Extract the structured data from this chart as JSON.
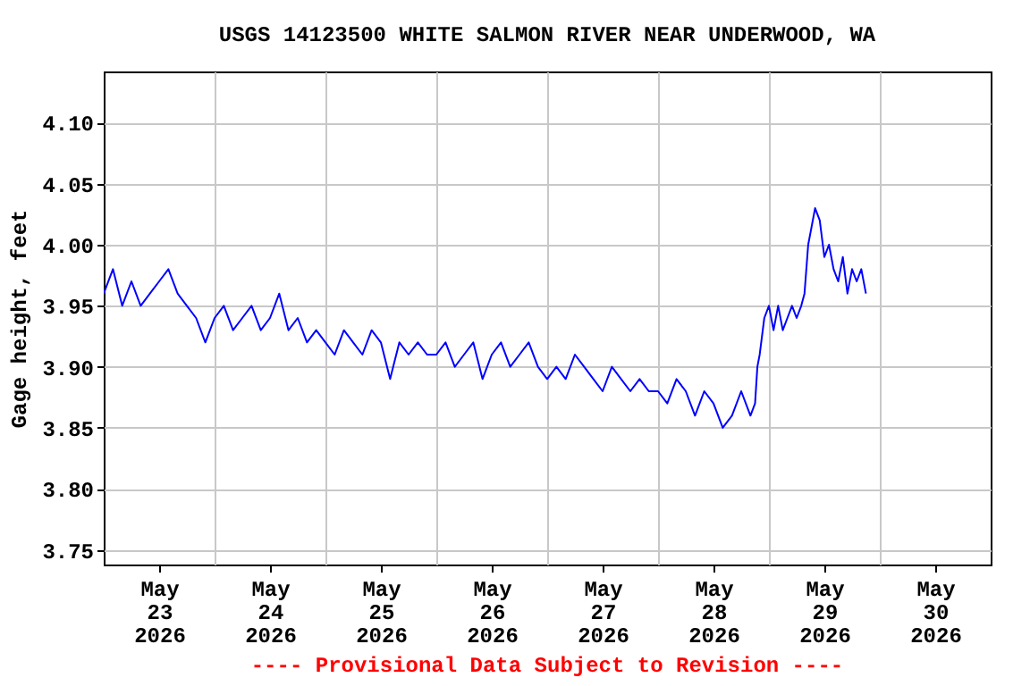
{
  "chart_data": {
    "type": "line",
    "title": "USGS 14123500 WHITE SALMON RIVER NEAR UNDERWOOD, WA",
    "ylabel": "Gage height, feet",
    "annotations": [
      "---- Provisional Data Subject to Revision ----"
    ],
    "x": [
      "2026-05-23T00:00",
      "2026-05-23T02:00",
      "2026-05-23T04:00",
      "2026-05-23T06:00",
      "2026-05-23T08:00",
      "2026-05-23T10:00",
      "2026-05-23T12:00",
      "2026-05-23T14:00",
      "2026-05-23T16:00",
      "2026-05-23T18:00",
      "2026-05-23T20:00",
      "2026-05-23T22:00",
      "2026-05-24T00:00",
      "2026-05-24T02:00",
      "2026-05-24T04:00",
      "2026-05-24T06:00",
      "2026-05-24T08:00",
      "2026-05-24T10:00",
      "2026-05-24T12:00",
      "2026-05-24T14:00",
      "2026-05-24T16:00",
      "2026-05-24T18:00",
      "2026-05-24T20:00",
      "2026-05-24T22:00",
      "2026-05-25T00:00",
      "2026-05-25T02:00",
      "2026-05-25T04:00",
      "2026-05-25T06:00",
      "2026-05-25T08:00",
      "2026-05-25T10:00",
      "2026-05-25T12:00",
      "2026-05-25T14:00",
      "2026-05-25T16:00",
      "2026-05-25T18:00",
      "2026-05-25T20:00",
      "2026-05-25T22:00",
      "2026-05-26T00:00",
      "2026-05-26T02:00",
      "2026-05-26T04:00",
      "2026-05-26T06:00",
      "2026-05-26T08:00",
      "2026-05-26T10:00",
      "2026-05-26T12:00",
      "2026-05-26T14:00",
      "2026-05-26T16:00",
      "2026-05-26T18:00",
      "2026-05-26T20:00",
      "2026-05-26T22:00",
      "2026-05-27T00:00",
      "2026-05-27T02:00",
      "2026-05-27T04:00",
      "2026-05-27T06:00",
      "2026-05-27T08:00",
      "2026-05-27T10:00",
      "2026-05-27T12:00",
      "2026-05-27T14:00",
      "2026-05-27T16:00",
      "2026-05-27T18:00",
      "2026-05-27T20:00",
      "2026-05-27T22:00",
      "2026-05-28T00:00",
      "2026-05-28T02:00",
      "2026-05-28T04:00",
      "2026-05-28T06:00",
      "2026-05-28T08:00",
      "2026-05-28T10:00",
      "2026-05-28T12:00",
      "2026-05-28T14:00",
      "2026-05-28T16:00",
      "2026-05-28T18:00",
      "2026-05-28T20:00",
      "2026-05-28T21:00",
      "2026-05-28T21:30",
      "2026-05-28T22:00",
      "2026-05-28T23:00",
      "2026-05-29T00:00",
      "2026-05-29T01:00",
      "2026-05-29T02:00",
      "2026-05-29T03:00",
      "2026-05-29T04:00",
      "2026-05-29T05:00",
      "2026-05-29T06:00",
      "2026-05-29T07:00",
      "2026-05-29T07:42",
      "2026-05-29T08:30",
      "2026-05-29T09:00",
      "2026-05-29T10:00",
      "2026-05-29T11:00",
      "2026-05-29T12:00",
      "2026-05-29T13:00",
      "2026-05-29T14:00",
      "2026-05-29T15:00",
      "2026-05-29T16:00",
      "2026-05-29T17:00",
      "2026-05-29T18:00",
      "2026-05-29T19:00",
      "2026-05-29T20:00",
      "2026-05-29T21:00"
    ],
    "series": [
      {
        "color": "#0000ff",
        "values": [
          3.96,
          3.98,
          3.95,
          3.97,
          3.95,
          3.96,
          3.97,
          3.98,
          3.96,
          3.95,
          3.94,
          3.92,
          3.94,
          3.95,
          3.93,
          3.94,
          3.95,
          3.93,
          3.94,
          3.96,
          3.93,
          3.94,
          3.92,
          3.93,
          3.92,
          3.91,
          3.93,
          3.92,
          3.91,
          3.93,
          3.92,
          3.89,
          3.92,
          3.91,
          3.92,
          3.91,
          3.91,
          3.92,
          3.9,
          3.91,
          3.92,
          3.89,
          3.91,
          3.92,
          3.9,
          3.91,
          3.92,
          3.9,
          3.89,
          3.9,
          3.89,
          3.91,
          3.9,
          3.89,
          3.88,
          3.9,
          3.89,
          3.88,
          3.89,
          3.88,
          3.88,
          3.87,
          3.89,
          3.88,
          3.86,
          3.88,
          3.87,
          3.85,
          3.86,
          3.88,
          3.86,
          3.87,
          3.9,
          3.91,
          3.94,
          3.95,
          3.93,
          3.95,
          3.93,
          3.94,
          3.95,
          3.94,
          3.95,
          3.96,
          4.0,
          4.01,
          4.03,
          4.02,
          3.99,
          4.0,
          3.98,
          3.97,
          3.99,
          3.96,
          3.98,
          3.97,
          3.98,
          3.96
        ]
      }
    ],
    "xlim": [
      "2026-05-23T00:00",
      "2026-05-31T00:00"
    ],
    "xticks": [
      {
        "value": "2026-05-23T12:00",
        "label": "May\n23\n2026"
      },
      {
        "value": "2026-05-24T12:00",
        "label": "May\n24\n2026"
      },
      {
        "value": "2026-05-25T12:00",
        "label": "May\n25\n2026"
      },
      {
        "value": "2026-05-26T12:00",
        "label": "May\n26\n2026"
      },
      {
        "value": "2026-05-27T12:00",
        "label": "May\n27\n2026"
      },
      {
        "value": "2026-05-28T12:00",
        "label": "May\n28\n2026"
      },
      {
        "value": "2026-05-29T12:00",
        "label": "May\n29\n2026"
      },
      {
        "value": "2026-05-30T12:00",
        "label": "May\n30\n2026"
      },
      {
        "value": "2026-05-24T00:00",
        "label": null
      },
      {
        "value": "2026-05-25T00:00",
        "label": null
      },
      {
        "value": "2026-05-26T00:00",
        "label": null
      },
      {
        "value": "2026-05-27T00:00",
        "label": null
      },
      {
        "value": "2026-05-28T00:00",
        "label": null
      },
      {
        "value": "2026-05-29T00:00",
        "label": null
      },
      {
        "value": "2026-05-30T00:00",
        "label": null
      }
    ],
    "ylim": [
      3.738,
      4.142
    ],
    "yticks": [
      {
        "value": 3.75,
        "label": "3.75"
      },
      {
        "value": 3.8,
        "label": "3.80"
      },
      {
        "value": 3.85,
        "label": "3.85"
      },
      {
        "value": 3.9,
        "label": "3.90"
      },
      {
        "value": 3.95,
        "label": "3.95"
      },
      {
        "value": 4.0,
        "label": "4.00"
      },
      {
        "value": 4.05,
        "label": "4.05"
      },
      {
        "value": 4.1,
        "label": "4.10"
      }
    ],
    "grid": true,
    "legend": false
  }
}
